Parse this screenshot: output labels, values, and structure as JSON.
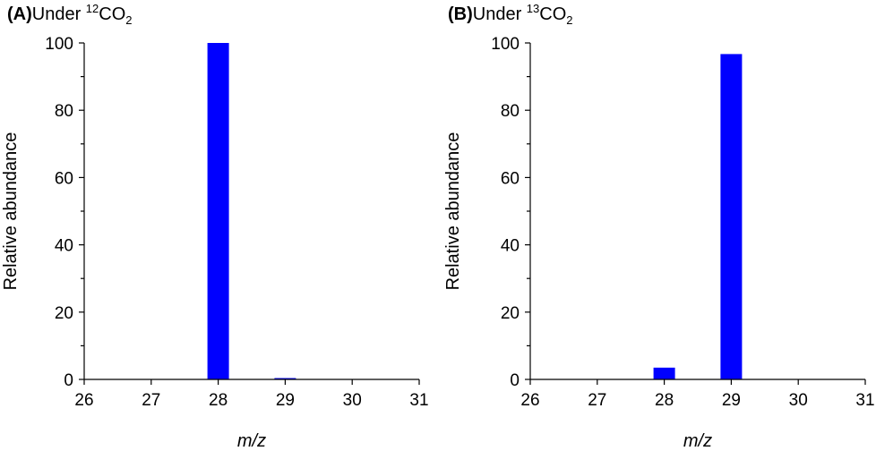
{
  "chart_data": [
    {
      "type": "bar",
      "panel_label": "(A)",
      "title_prefix": "Under ",
      "title_isotope": "12",
      "title_formula_main": "CO",
      "title_formula_sub": "2",
      "xlabel": "m/z",
      "ylabel": "Relative abundance",
      "xlim": [
        26,
        31
      ],
      "ylim": [
        0,
        100
      ],
      "x_ticks": [
        26,
        27,
        28,
        29,
        30,
        31
      ],
      "y_ticks": [
        0,
        20,
        40,
        60,
        80,
        100
      ],
      "x": [
        28,
        29
      ],
      "values": [
        100,
        0.4
      ],
      "color": "#0000ff",
      "grid": false
    },
    {
      "type": "bar",
      "panel_label": "(B)",
      "title_prefix": "Under ",
      "title_isotope": "13",
      "title_formula_main": "CO",
      "title_formula_sub": "2",
      "xlabel": "m/z",
      "ylabel": "Relative abundance",
      "xlim": [
        26,
        31
      ],
      "ylim": [
        0,
        100
      ],
      "x_ticks": [
        26,
        27,
        28,
        29,
        30,
        31
      ],
      "y_ticks": [
        0,
        20,
        40,
        60,
        80,
        100
      ],
      "x": [
        28,
        29
      ],
      "values": [
        3.5,
        96.7
      ],
      "color": "#0000ff",
      "grid": false
    }
  ]
}
